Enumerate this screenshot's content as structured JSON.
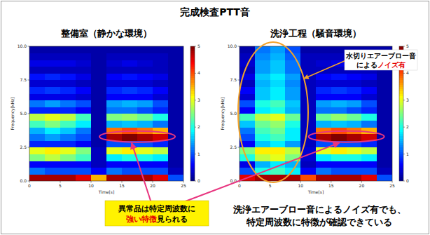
{
  "title": "完成検査PTT音",
  "chart_data": [
    {
      "type": "heatmap",
      "title": "整備室（静かな環境）",
      "xlabel": "Time[s]",
      "ylabel": "Frequency[kHz]",
      "xlim": [
        0,
        25
      ],
      "ylim": [
        0,
        10
      ],
      "xticks": [
        0,
        5,
        10,
        15,
        20,
        25
      ],
      "yticks": [
        {
          "value": 0,
          "label": "0.0"
        },
        {
          "value": 2.5,
          "label": "2.5"
        },
        {
          "value": 5,
          "label": "5.0"
        },
        {
          "value": 7.5,
          "label": "7.5"
        },
        {
          "value": 10,
          "label": "10.0"
        }
      ],
      "x": [
        0,
        2.5,
        5,
        7.5,
        10,
        12.5,
        15,
        17.5,
        20,
        22.5,
        25
      ],
      "y": [
        0,
        0.5,
        1,
        1.5,
        2,
        2.5,
        3,
        3.5,
        4,
        4.5,
        5,
        5.5,
        6,
        6.5,
        7,
        7.5,
        8,
        8.5,
        9,
        9.5,
        10
      ],
      "cells": [
        [
          4.8,
          4.8,
          4.8,
          4.5,
          3.5,
          4.8,
          4.8,
          4.8,
          4.5,
          1.0
        ],
        [
          1.2,
          1.0,
          1.0,
          1.0,
          0.6,
          1.2,
          1.0,
          1.0,
          1.0,
          0.3
        ],
        [
          0.6,
          0.6,
          0.6,
          0.6,
          0.3,
          0.6,
          0.6,
          0.6,
          0.6,
          0.2
        ],
        [
          2.5,
          2.8,
          2.5,
          2.2,
          0.3,
          1.8,
          2.0,
          2.0,
          1.8,
          0.2
        ],
        [
          3.0,
          3.2,
          3.0,
          2.5,
          0.3,
          3.0,
          3.2,
          3.0,
          2.8,
          0.2
        ],
        [
          0.8,
          0.8,
          0.8,
          0.6,
          0.2,
          1.0,
          1.0,
          1.0,
          0.8,
          0.2
        ],
        [
          1.2,
          1.4,
          1.2,
          1.0,
          0.2,
          4.8,
          5.0,
          4.8,
          4.6,
          0.2
        ],
        [
          1.5,
          1.8,
          1.6,
          1.2,
          0.2,
          3.8,
          4.0,
          3.8,
          3.5,
          0.2
        ],
        [
          2.2,
          2.5,
          2.2,
          1.8,
          0.2,
          1.5,
          1.6,
          1.5,
          1.2,
          0.2
        ],
        [
          2.8,
          3.0,
          2.8,
          2.2,
          0.2,
          2.5,
          2.6,
          2.4,
          2.0,
          0.2
        ],
        [
          0.8,
          0.8,
          0.8,
          0.6,
          0.2,
          1.2,
          1.2,
          1.0,
          0.8,
          0.2
        ],
        [
          1.2,
          1.4,
          1.2,
          1.0,
          0.2,
          1.4,
          1.5,
          1.4,
          1.0,
          0.2
        ],
        [
          0.5,
          0.5,
          0.5,
          0.4,
          0.2,
          0.6,
          0.6,
          0.6,
          0.4,
          0.2
        ],
        [
          0.8,
          0.9,
          0.8,
          0.6,
          0.2,
          0.8,
          0.9,
          0.8,
          0.6,
          0.2
        ],
        [
          0.4,
          0.4,
          0.4,
          0.3,
          0.2,
          0.4,
          0.4,
          0.4,
          0.3,
          0.2
        ],
        [
          0.7,
          0.8,
          0.7,
          0.5,
          0.2,
          0.6,
          0.7,
          0.6,
          0.5,
          0.2
        ],
        [
          0.3,
          0.3,
          0.3,
          0.3,
          0.2,
          0.3,
          0.3,
          0.3,
          0.3,
          0.2
        ],
        [
          0.5,
          0.5,
          0.5,
          0.4,
          0.2,
          0.4,
          0.5,
          0.4,
          0.3,
          0.2
        ],
        [
          0.3,
          0.3,
          0.3,
          0.3,
          0.2,
          0.3,
          0.3,
          0.3,
          0.3,
          0.2
        ],
        [
          0.2,
          0.2,
          0.2,
          0.2,
          0.2,
          0.2,
          0.2,
          0.2,
          0.2,
          0.2
        ]
      ],
      "colorbar": {
        "range": [
          0,
          5
        ],
        "ticks": [
          0,
          1,
          2,
          3,
          4,
          5
        ]
      }
    },
    {
      "type": "heatmap",
      "title": "洗浄工程（騒音環境）",
      "xlabel": "Time[s]",
      "ylabel": "Frequency[kHz]",
      "xlim": [
        0,
        25
      ],
      "ylim": [
        0,
        10
      ],
      "xticks": [
        0,
        5,
        10,
        15,
        20,
        25
      ],
      "yticks": [
        {
          "value": 0,
          "label": "0.0"
        },
        {
          "value": 2.5,
          "label": "2.5"
        },
        {
          "value": 5,
          "label": "5.0"
        },
        {
          "value": 7.5,
          "label": "7.5"
        },
        {
          "value": 10,
          "label": "10.0"
        }
      ],
      "x": [
        0,
        2.5,
        5,
        7.5,
        10,
        12.5,
        15,
        17.5,
        20,
        22.5,
        25
      ],
      "y": [
        0,
        0.5,
        1,
        1.5,
        2,
        2.5,
        3,
        3.5,
        4,
        4.5,
        5,
        5.5,
        6,
        6.5,
        7,
        7.5,
        8,
        8.5,
        9,
        9.5,
        10
      ],
      "cells": [
        [
          4.5,
          4.8,
          4.8,
          4.8,
          4.0,
          4.8,
          4.8,
          4.8,
          4.5,
          1.0
        ],
        [
          1.0,
          2.0,
          2.2,
          1.8,
          0.6,
          1.2,
          1.0,
          1.0,
          1.0,
          0.3
        ],
        [
          0.5,
          1.5,
          1.8,
          1.5,
          0.3,
          0.6,
          0.6,
          0.6,
          0.6,
          0.2
        ],
        [
          2.0,
          2.8,
          3.0,
          2.5,
          0.4,
          1.8,
          2.0,
          2.0,
          1.8,
          0.2
        ],
        [
          2.5,
          3.2,
          3.2,
          2.8,
          0.4,
          3.0,
          3.2,
          3.0,
          2.8,
          0.2
        ],
        [
          0.6,
          1.6,
          1.8,
          1.4,
          0.3,
          1.0,
          1.0,
          1.0,
          0.8,
          0.2
        ],
        [
          1.0,
          2.0,
          2.2,
          1.8,
          0.3,
          4.8,
          5.0,
          4.8,
          4.6,
          0.2
        ],
        [
          1.2,
          2.2,
          2.4,
          1.8,
          0.3,
          3.8,
          4.0,
          3.8,
          3.5,
          0.2
        ],
        [
          1.6,
          2.4,
          2.6,
          2.0,
          0.3,
          1.5,
          1.6,
          1.5,
          1.2,
          0.2
        ],
        [
          2.2,
          2.8,
          3.0,
          2.4,
          0.3,
          2.4,
          2.6,
          2.4,
          2.0,
          0.2
        ],
        [
          0.6,
          1.8,
          2.0,
          1.5,
          0.3,
          1.2,
          1.2,
          1.0,
          0.8,
          0.2
        ],
        [
          1.0,
          2.0,
          2.2,
          1.6,
          0.3,
          1.4,
          1.5,
          1.4,
          1.0,
          0.2
        ],
        [
          0.4,
          1.6,
          1.8,
          1.4,
          0.3,
          0.6,
          0.6,
          0.6,
          0.4,
          0.2
        ],
        [
          0.6,
          1.6,
          1.8,
          1.4,
          0.3,
          0.8,
          0.9,
          0.8,
          0.6,
          0.2
        ],
        [
          0.3,
          1.5,
          1.7,
          1.3,
          0.3,
          0.4,
          0.4,
          0.4,
          0.3,
          0.2
        ],
        [
          0.5,
          1.6,
          1.8,
          1.4,
          0.3,
          0.6,
          0.7,
          0.6,
          0.5,
          0.2
        ],
        [
          0.3,
          1.4,
          1.6,
          1.2,
          0.3,
          0.3,
          0.3,
          0.3,
          0.3,
          0.2
        ],
        [
          0.4,
          1.4,
          1.6,
          1.2,
          0.3,
          0.4,
          0.5,
          0.4,
          0.3,
          0.2
        ],
        [
          0.3,
          1.3,
          1.5,
          1.1,
          0.3,
          0.3,
          0.3,
          0.3,
          0.3,
          0.2
        ],
        [
          0.2,
          1.2,
          1.4,
          1.0,
          0.2,
          0.2,
          0.2,
          0.2,
          0.2,
          0.2
        ]
      ],
      "colorbar": {
        "range": [
          0,
          5
        ],
        "ticks": [
          0,
          1,
          2,
          3,
          4,
          5
        ]
      }
    }
  ],
  "annotations": {
    "noise": {
      "lines": [
        [
          {
            "text": "水切りエアーブロー音"
          }
        ],
        [
          {
            "text": "による"
          },
          {
            "text": "ノイズ有",
            "color": "#e60000"
          }
        ]
      ]
    },
    "anomaly": {
      "lines": [
        [
          {
            "text": "異常品は特定周波数に"
          }
        ],
        [
          {
            "text": "強い特徴",
            "color": "#e60000"
          },
          {
            "text": "見られる"
          }
        ]
      ]
    },
    "conclusion": {
      "lines": [
        [
          {
            "text": "洗浄エアーブロー音によるノイズ有でも、"
          }
        ],
        [
          {
            "text": "特定周波数に特徴が確認できている"
          }
        ]
      ]
    }
  }
}
